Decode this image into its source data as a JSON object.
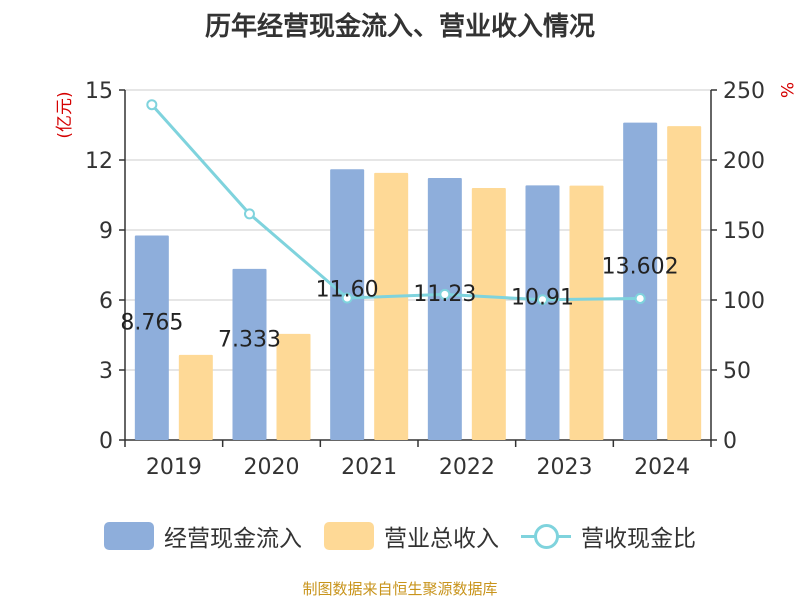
{
  "chart_data": {
    "type": "bar",
    "title": "历年经营现金流入、营业收入情况",
    "categories": [
      "2019",
      "2020",
      "2021",
      "2022",
      "2023",
      "2024"
    ],
    "y_left": {
      "label": "(亿元)",
      "ylim": [
        0,
        15
      ],
      "ticks": [
        0,
        3,
        6,
        9,
        12,
        15
      ]
    },
    "y_right": {
      "label": "%",
      "ylim": [
        0,
        250
      ],
      "ticks": [
        0,
        50,
        100,
        150,
        200,
        250
      ]
    },
    "series": [
      {
        "name": "经营现金流入",
        "type": "bar",
        "axis": "left",
        "color": "#8eaedb",
        "values": [
          8.765,
          7.333,
          11.603,
          11.23,
          10.914,
          13.602
        ],
        "data_labels": [
          "8.765",
          "7.333",
          "11.60",
          "11.23",
          "10.91",
          "13.602"
        ]
      },
      {
        "name": "营业总收入",
        "type": "bar",
        "axis": "left",
        "color": "#fed996",
        "values": [
          3.65,
          4.55,
          11.45,
          10.8,
          10.9,
          13.45
        ]
      },
      {
        "name": "营收现金比",
        "type": "line",
        "axis": "right",
        "color": "#7fd3dd",
        "values": [
          239.5,
          161.5,
          101.4,
          104.0,
          100.2,
          101.1
        ]
      }
    ],
    "grid": true,
    "legend_position": "bottom"
  },
  "source": "制图数据来自恒生聚源数据库"
}
